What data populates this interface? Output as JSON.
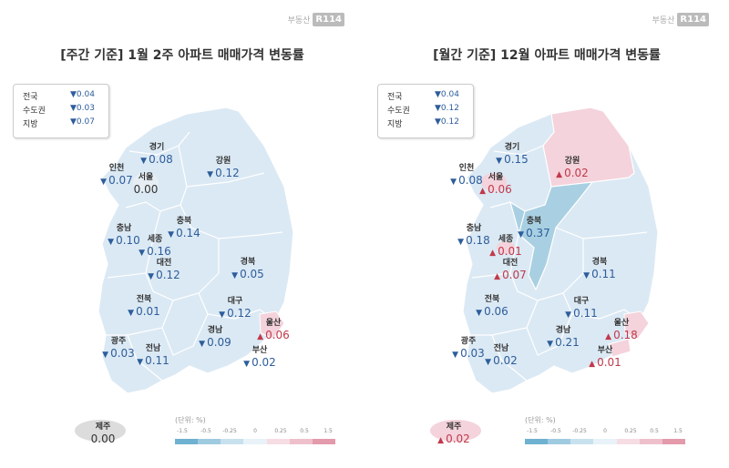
{
  "brand": {
    "text": "부동산",
    "badge": "R114"
  },
  "unit_label": "(단위: %)",
  "scale_ticks": [
    "-1.5",
    "-0.5",
    "-0.25",
    "0",
    "0.25",
    "0.5",
    "1.5"
  ],
  "colors": {
    "down": "#2d5d9b",
    "up": "#c1394a",
    "land_light": "#dbe9f4",
    "land_mid": "#a9d0e2",
    "land_pink": "#f4d3dc",
    "island_gray": "#dcdcdc"
  },
  "scale_colors": [
    "#6fb1d0",
    "#9fcbe0",
    "#c8e1ee",
    "#e8f2f8",
    "#f6dde3",
    "#eec0cb",
    "#e39aab"
  ],
  "panels": [
    {
      "title": "[주간 기준] 1월 2주 아파트 매매가격 변동률",
      "summary": [
        {
          "name": "전국",
          "value": "▼0.04"
        },
        {
          "name": "수도권",
          "value": "▼0.03"
        },
        {
          "name": "지방",
          "value": "▼0.07"
        }
      ],
      "regions": [
        {
          "name": "경기",
          "value": "0.08",
          "dir": "down"
        },
        {
          "name": "인천",
          "value": "0.07",
          "dir": "down"
        },
        {
          "name": "서울",
          "value": "0.00",
          "dir": "flat"
        },
        {
          "name": "강원",
          "value": "0.12",
          "dir": "down"
        },
        {
          "name": "충북",
          "value": "0.14",
          "dir": "down"
        },
        {
          "name": "충남",
          "value": "0.10",
          "dir": "down"
        },
        {
          "name": "세종",
          "value": "0.16",
          "dir": "down"
        },
        {
          "name": "대전",
          "value": "0.12",
          "dir": "down"
        },
        {
          "name": "경북",
          "value": "0.05",
          "dir": "down"
        },
        {
          "name": "전북",
          "value": "0.01",
          "dir": "down"
        },
        {
          "name": "대구",
          "value": "0.12",
          "dir": "down"
        },
        {
          "name": "울산",
          "value": "0.06",
          "dir": "up"
        },
        {
          "name": "경남",
          "value": "0.09",
          "dir": "down"
        },
        {
          "name": "광주",
          "value": "0.03",
          "dir": "down"
        },
        {
          "name": "전남",
          "value": "0.11",
          "dir": "down"
        },
        {
          "name": "부산",
          "value": "0.02",
          "dir": "down"
        },
        {
          "name": "제주",
          "value": "0.00",
          "dir": "flat"
        }
      ]
    },
    {
      "title": "[월간 기준] 12월 아파트 매매가격 변동률",
      "summary": [
        {
          "name": "전국",
          "value": "▼0.04"
        },
        {
          "name": "수도권",
          "value": "▼0.12"
        },
        {
          "name": "지방",
          "value": "▼0.12"
        }
      ],
      "regions": [
        {
          "name": "경기",
          "value": "0.15",
          "dir": "down"
        },
        {
          "name": "인천",
          "value": "0.08",
          "dir": "down"
        },
        {
          "name": "서울",
          "value": "0.06",
          "dir": "up"
        },
        {
          "name": "강원",
          "value": "0.02",
          "dir": "up"
        },
        {
          "name": "충북",
          "value": "0.37",
          "dir": "down"
        },
        {
          "name": "충남",
          "value": "0.18",
          "dir": "down"
        },
        {
          "name": "세종",
          "value": "0.01",
          "dir": "up"
        },
        {
          "name": "대전",
          "value": "0.07",
          "dir": "up"
        },
        {
          "name": "경북",
          "value": "0.11",
          "dir": "down"
        },
        {
          "name": "전북",
          "value": "0.06",
          "dir": "down"
        },
        {
          "name": "대구",
          "value": "0.11",
          "dir": "down"
        },
        {
          "name": "울산",
          "value": "0.18",
          "dir": "up"
        },
        {
          "name": "경남",
          "value": "0.21",
          "dir": "down"
        },
        {
          "name": "광주",
          "value": "0.03",
          "dir": "down"
        },
        {
          "name": "전남",
          "value": "0.02",
          "dir": "down"
        },
        {
          "name": "부산",
          "value": "0.01",
          "dir": "up"
        },
        {
          "name": "제주",
          "value": "0.02",
          "dir": "up"
        }
      ]
    }
  ]
}
